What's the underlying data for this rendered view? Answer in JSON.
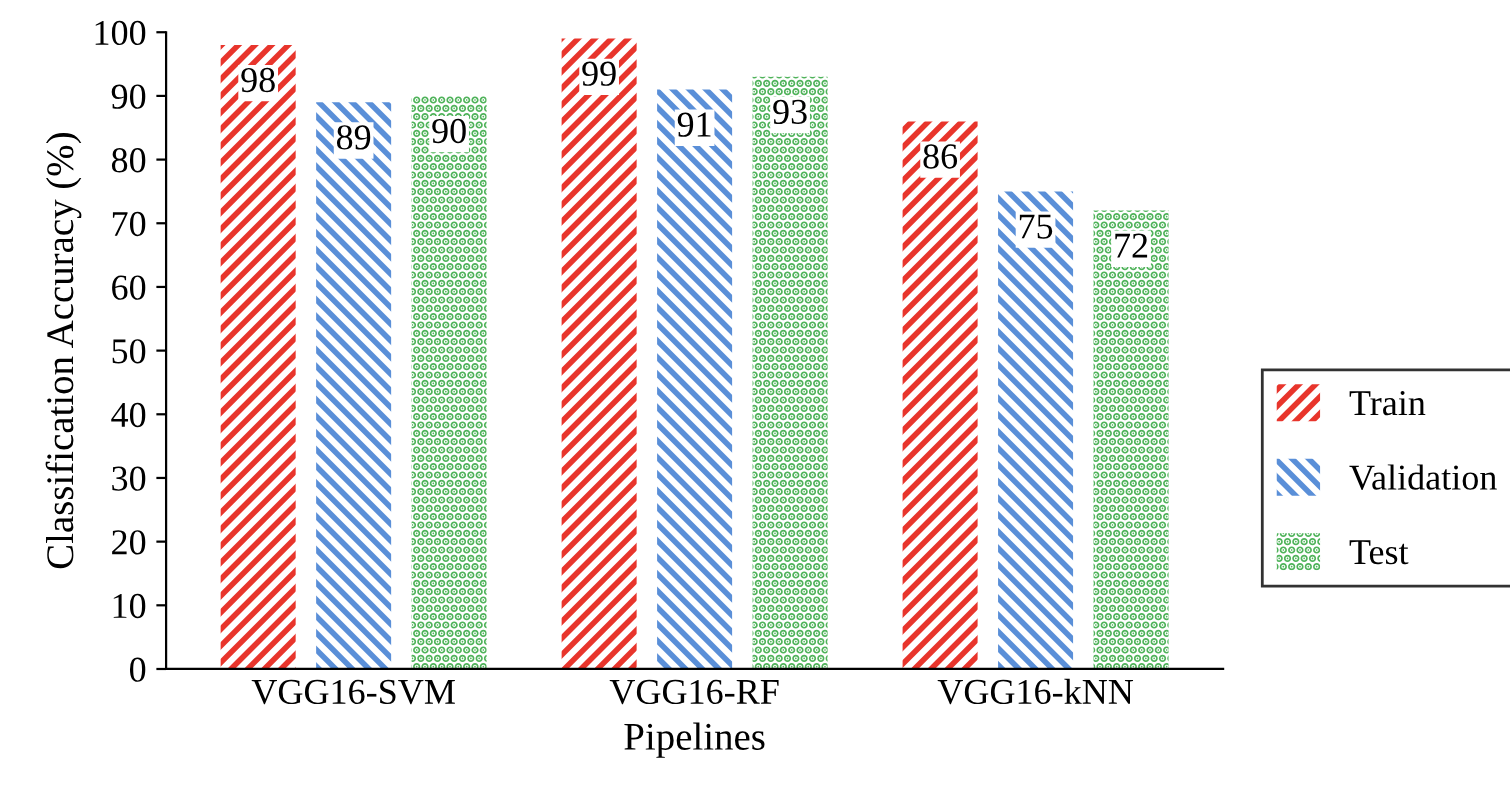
{
  "chart_data": {
    "type": "bar",
    "xlabel": "Pipelines",
    "ylabel": "Classification Accuracy (%)",
    "categories": [
      "VGG16-SVM",
      "VGG16-RF",
      "VGG16-kNN"
    ],
    "series": [
      {
        "name": "Train",
        "color": "#e8352c",
        "values": [
          98,
          99,
          86
        ]
      },
      {
        "name": "Validation",
        "color": "#5a8fd8",
        "values": [
          89,
          91,
          75
        ]
      },
      {
        "name": "Test",
        "color": "#4fb35a",
        "values": [
          90,
          93,
          72
        ]
      }
    ],
    "ylim": [
      0,
      100
    ],
    "yticks": [
      0,
      10,
      20,
      30,
      40,
      50,
      60,
      70,
      80,
      90,
      100
    ],
    "data_labels": true,
    "grid": false,
    "legend": "right"
  }
}
